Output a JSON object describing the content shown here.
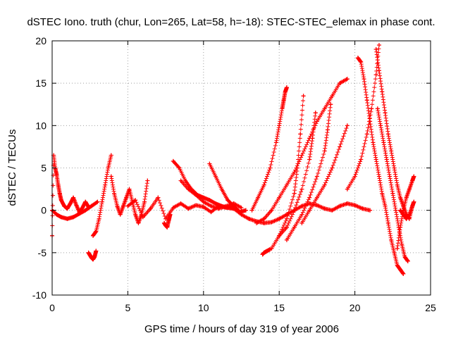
{
  "chart_data": {
    "type": "scatter",
    "title": "dSTEC Iono. truth (chur, Lon=265, Lat=58, h=-18): STEC-STEC_elemax in phase cont.",
    "xlabel": "GPS time / hours of day 319 of year 2006",
    "ylabel": "dSTEC  / TECUs",
    "xlim": [
      0,
      25
    ],
    "ylim": [
      -10,
      20
    ],
    "xticks": [
      0,
      5,
      10,
      15,
      20,
      25
    ],
    "yticks": [
      -10,
      -5,
      0,
      5,
      10,
      15,
      20
    ],
    "grid": true,
    "marker": "+",
    "color": "#ff0000",
    "series": [
      {
        "x": [
          0.0,
          0.1,
          0.2,
          0.3,
          0.4,
          0.5,
          0.6,
          0.8,
          1.0,
          1.2,
          1.4,
          1.6,
          1.8,
          2.0,
          2.2,
          2.4
        ],
        "y": [
          -3.0,
          6.5,
          5.0,
          4.2,
          3.0,
          2.0,
          1.2,
          0.5,
          0.2,
          0.8,
          1.5,
          0.6,
          -0.2,
          0.3,
          1.0,
          0.4
        ]
      },
      {
        "x": [
          0.0,
          0.3,
          0.6,
          1.0,
          1.4,
          1.8,
          2.2,
          2.6,
          3.0
        ],
        "y": [
          0.0,
          -0.5,
          -0.8,
          -1.0,
          -0.8,
          -0.4,
          0.0,
          0.5,
          1.0
        ]
      },
      {
        "x": [
          2.4,
          2.5,
          2.6,
          2.7,
          2.8,
          2.9
        ],
        "y": [
          -5.0,
          -5.3,
          -5.6,
          -5.8,
          -5.5,
          -4.8
        ]
      },
      {
        "x": [
          2.7,
          2.9,
          3.1,
          3.3,
          3.5,
          3.7,
          3.9
        ],
        "y": [
          -3.0,
          -2.5,
          -1.0,
          1.0,
          3.0,
          5.0,
          6.5
        ]
      },
      {
        "x": [
          3.9,
          4.1,
          4.3,
          4.5,
          4.7,
          4.9,
          5.1,
          5.3,
          5.5,
          5.7,
          5.9,
          6.1,
          6.3
        ],
        "y": [
          4.0,
          2.0,
          0.5,
          -0.5,
          0.5,
          1.5,
          2.5,
          1.0,
          -0.5,
          -1.5,
          -0.5,
          1.0,
          3.5
        ]
      },
      {
        "x": [
          5.0,
          5.5,
          6.0,
          6.5,
          7.0,
          7.5,
          8.0,
          8.5,
          9.0,
          9.5,
          10.0,
          10.5,
          11.0,
          11.5,
          12.0
        ],
        "y": [
          0.5,
          1.2,
          -0.8,
          0.2,
          1.5,
          -1.0,
          0.3,
          0.8,
          0.2,
          0.6,
          0.4,
          -0.2,
          0.5,
          0.3,
          0.6
        ]
      },
      {
        "x": [
          7.4,
          7.5,
          7.6,
          7.7,
          7.8
        ],
        "y": [
          -1.5,
          -1.8,
          -2.0,
          -1.2,
          -0.5
        ]
      },
      {
        "x": [
          8.0,
          8.4,
          8.8,
          9.2,
          9.6,
          10.0,
          10.4,
          10.8,
          11.2,
          11.6,
          12.0
        ],
        "y": [
          5.8,
          5.0,
          3.5,
          2.5,
          1.8,
          1.5,
          1.2,
          0.8,
          0.5,
          0.3,
          0.2
        ]
      },
      {
        "x": [
          8.5,
          9.0,
          9.5,
          10.0,
          10.5,
          11.0,
          11.5,
          12.0,
          12.5
        ],
        "y": [
          3.5,
          2.5,
          1.8,
          1.0,
          0.5,
          0.2,
          0.5,
          0.8,
          0.3
        ]
      },
      {
        "x": [
          10.4,
          10.8,
          11.2,
          11.6,
          12.0,
          12.4,
          12.8
        ],
        "y": [
          5.5,
          4.0,
          2.5,
          1.2,
          0.5,
          -0.2,
          0.0
        ]
      },
      {
        "x": [
          12.0,
          12.5,
          13.0,
          13.5,
          14.0,
          14.5,
          15.0,
          15.5,
          16.0,
          16.5,
          17.0,
          17.5,
          18.0,
          18.5,
          19.0,
          19.5,
          20.0,
          20.5,
          21.0
        ],
        "y": [
          0.2,
          -0.5,
          -1.0,
          -1.3,
          -1.5,
          -1.4,
          -1.0,
          -0.5,
          0.0,
          0.5,
          0.8,
          0.6,
          0.2,
          0.0,
          0.5,
          0.8,
          0.6,
          0.2,
          0.0
        ]
      },
      {
        "x": [
          13.2,
          13.6,
          14.0,
          14.4,
          14.8,
          15.0,
          15.2,
          15.3,
          15.4,
          15.5
        ],
        "y": [
          0.0,
          1.5,
          3.0,
          5.0,
          8.0,
          10.0,
          12.0,
          13.0,
          14.0,
          14.5
        ]
      },
      {
        "x": [
          13.5,
          14.0,
          14.5,
          15.0,
          15.5,
          16.0,
          16.5,
          17.0,
          17.5,
          18.0,
          18.5,
          19.0,
          19.5
        ],
        "y": [
          -1.5,
          -1.0,
          0.0,
          1.5,
          3.0,
          4.5,
          6.5,
          8.5,
          10.5,
          12.0,
          13.5,
          15.0,
          15.5
        ]
      },
      {
        "x": [
          13.9,
          14.0,
          14.1,
          14.2,
          14.4
        ],
        "y": [
          -5.2,
          -5.0,
          -4.9,
          -4.8,
          -4.6
        ]
      },
      {
        "x": [
          14.5,
          15.0,
          15.5,
          16.0,
          16.2,
          16.4,
          16.6
        ],
        "y": [
          -4.5,
          -3.0,
          -1.0,
          2.0,
          5.0,
          9.0,
          13.5
        ]
      },
      {
        "x": [
          15.0,
          15.5,
          16.0,
          16.5,
          17.0,
          17.2,
          17.4
        ],
        "y": [
          -3.0,
          -2.0,
          0.0,
          2.5,
          6.0,
          8.5,
          11.5
        ]
      },
      {
        "x": [
          15.5,
          16.0,
          16.5,
          17.0,
          17.5,
          18.0,
          18.2,
          18.4
        ],
        "y": [
          -3.5,
          -2.0,
          -0.5,
          1.5,
          4.0,
          7.0,
          9.5,
          12.5
        ]
      },
      {
        "x": [
          16.5,
          17.0,
          17.5,
          18.0,
          18.5,
          19.0,
          19.5
        ],
        "y": [
          -1.5,
          0.0,
          1.5,
          3.0,
          5.0,
          7.5,
          10.0
        ]
      },
      {
        "x": [
          19.5,
          20.0,
          20.4,
          20.8,
          21.1,
          21.4,
          21.6
        ],
        "y": [
          2.5,
          4.0,
          6.0,
          9.0,
          12.0,
          16.0,
          19.5
        ]
      },
      {
        "x": [
          20.2,
          20.4,
          20.6,
          20.8,
          21.0,
          21.2,
          21.4,
          21.6,
          21.8,
          22.0,
          22.2,
          22.4,
          22.6,
          22.8,
          23.0,
          23.2
        ],
        "y": [
          18.0,
          17.5,
          15.5,
          13.0,
          10.5,
          8.0,
          6.0,
          4.0,
          2.0,
          0.5,
          -1.5,
          -3.5,
          -5.0,
          -6.5,
          -7.0,
          -7.5
        ]
      },
      {
        "x": [
          21.4,
          21.6,
          21.8,
          22.0,
          22.2,
          22.4,
          22.6,
          22.8,
          23.0,
          23.2,
          23.4,
          23.6,
          23.8
        ],
        "y": [
          19.0,
          16.5,
          14.0,
          11.5,
          9.0,
          7.0,
          5.0,
          3.0,
          1.5,
          0.5,
          -0.5,
          -1.0,
          0.5
        ]
      },
      {
        "x": [
          21.5,
          21.7,
          21.9,
          22.1,
          22.3,
          22.5,
          22.7,
          22.9,
          23.1,
          23.3,
          23.5
        ],
        "y": [
          12.0,
          10.0,
          8.0,
          6.0,
          4.0,
          2.0,
          0.0,
          -2.0,
          -4.0,
          -5.5,
          -6.0
        ]
      },
      {
        "x": [
          22.8,
          23.0,
          23.2,
          23.4,
          23.6,
          23.8,
          23.9
        ],
        "y": [
          -4.5,
          -2.0,
          0.0,
          1.5,
          2.5,
          3.5,
          4.0
        ]
      },
      {
        "x": [
          23.0,
          23.2,
          23.4,
          23.6,
          23.8,
          23.9
        ],
        "y": [
          0.0,
          -0.5,
          -1.0,
          -0.5,
          0.5,
          1.0
        ]
      }
    ]
  }
}
